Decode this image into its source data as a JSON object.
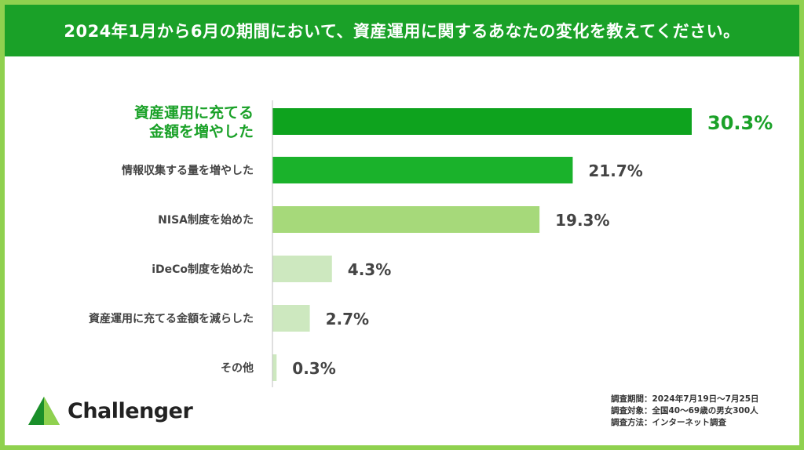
{
  "header": {
    "title": "2024年1月から6月の期間において、資産運用に関するあなたの変化を教えてください。"
  },
  "chart_data": {
    "type": "bar",
    "orientation": "horizontal",
    "categories": [
      [
        "資産運用に充てる",
        "金額を増やした"
      ],
      [
        "情報収集する量を増やした"
      ],
      [
        "NISA制度を始めた"
      ],
      [
        "iDeCo制度を始めた"
      ],
      [
        "資産運用に充てる金額を減らした"
      ],
      [
        "その他"
      ]
    ],
    "values": [
      30.3,
      21.7,
      19.3,
      4.3,
      2.7,
      0.3
    ],
    "value_labels": [
      "30.3%",
      "21.7%",
      "19.3%",
      "4.3%",
      "2.7%",
      "0.3%"
    ],
    "bar_colors": [
      "#0ea31e",
      "#1ab22b",
      "#a6d97a",
      "#cde8bf",
      "#cde8bf",
      "#cde8bf"
    ],
    "highlight_color": "#1aa128",
    "text_color": "#444444",
    "xlim": [
      0,
      30.3
    ],
    "grid": false
  },
  "brand": {
    "name": "Challenger",
    "logo_colors": [
      "#1a8f2a",
      "#8fd14f"
    ]
  },
  "survey": {
    "period": "調査期間：2024年7月19日～7月25日",
    "target": "調査対象：全国40～69歳の男女300人",
    "method": "調査方法：インターネット調査"
  }
}
